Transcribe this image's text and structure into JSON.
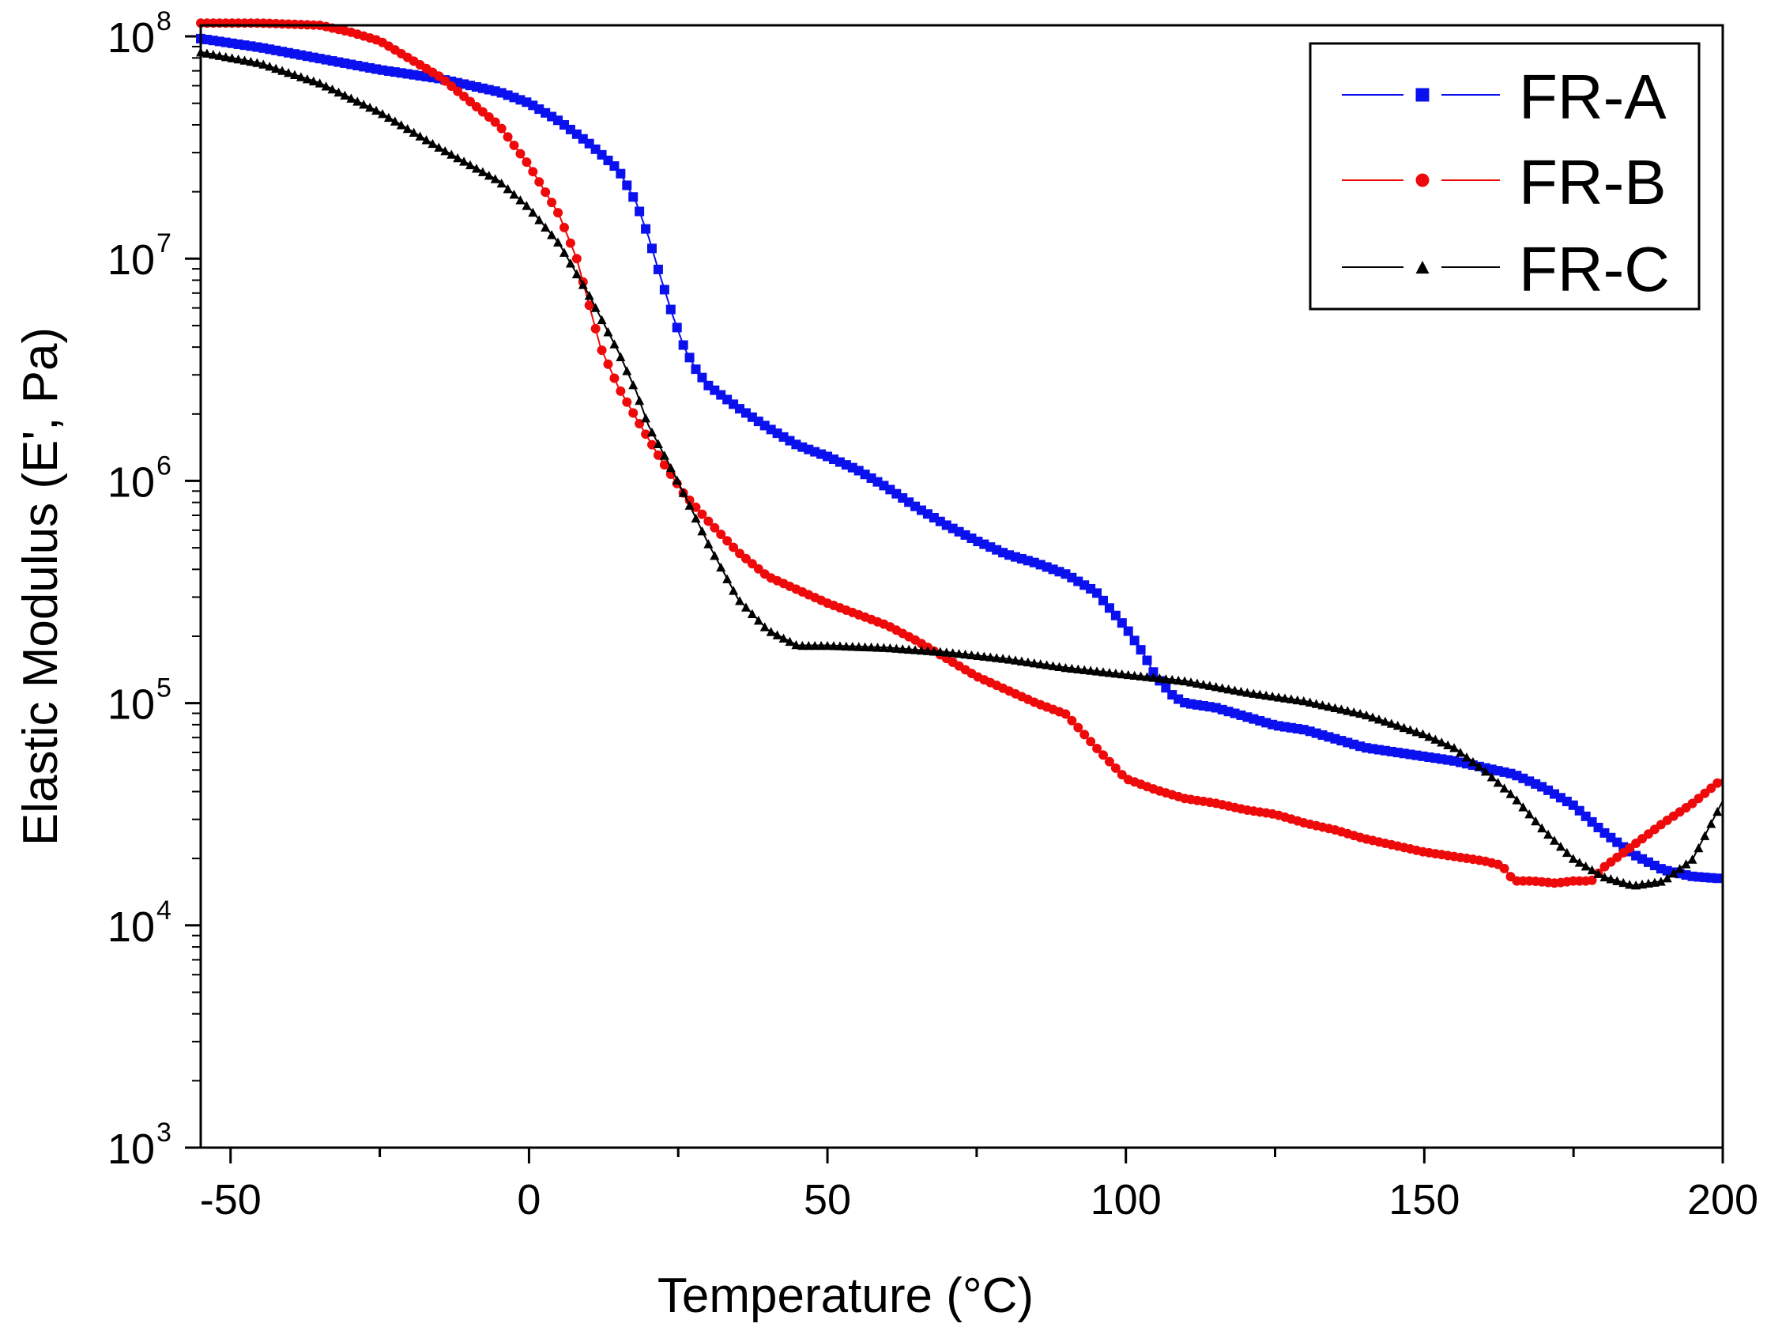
{
  "chart_data": {
    "type": "scatter",
    "title": "",
    "xlabel": "Temperature (°C)",
    "ylabel": "Elastic Modulus (E', Pa)",
    "xlim": [
      -55,
      200
    ],
    "ylim_log10": [
      3,
      8.05
    ],
    "y_scale": "log",
    "x_ticks": [
      -50,
      0,
      50,
      100,
      150,
      200
    ],
    "x_tick_labels": [
      "-50",
      "0",
      "50",
      "100",
      "150",
      "200"
    ],
    "y_ticks_exp": [
      3,
      4,
      5,
      6,
      7,
      8
    ],
    "y_tick_base": "10",
    "y_tick_exps": [
      "3",
      "4",
      "5",
      "6",
      "7",
      "8"
    ],
    "legend_position": "top-right",
    "series": [
      {
        "name": "FR-A",
        "color": "#0a10ee",
        "marker": "square",
        "points": [
          [
            -55,
            7.99
          ],
          [
            -45,
            7.95
          ],
          [
            -35,
            7.9
          ],
          [
            -25,
            7.85
          ],
          [
            -15,
            7.81
          ],
          [
            -5,
            7.75
          ],
          [
            0,
            7.7
          ],
          [
            5,
            7.62
          ],
          [
            10,
            7.52
          ],
          [
            15,
            7.4
          ],
          [
            18,
            7.25
          ],
          [
            20,
            7.1
          ],
          [
            22,
            6.92
          ],
          [
            24,
            6.75
          ],
          [
            26,
            6.6
          ],
          [
            28,
            6.5
          ],
          [
            30,
            6.43
          ],
          [
            35,
            6.33
          ],
          [
            40,
            6.24
          ],
          [
            45,
            6.16
          ],
          [
            50,
            6.11
          ],
          [
            55,
            6.05
          ],
          [
            60,
            5.97
          ],
          [
            65,
            5.88
          ],
          [
            70,
            5.8
          ],
          [
            75,
            5.73
          ],
          [
            80,
            5.67
          ],
          [
            85,
            5.63
          ],
          [
            90,
            5.58
          ],
          [
            95,
            5.5
          ],
          [
            100,
            5.34
          ],
          [
            103,
            5.22
          ],
          [
            105,
            5.12
          ],
          [
            108,
            5.03
          ],
          [
            110,
            5.0
          ],
          [
            115,
            4.98
          ],
          [
            120,
            4.94
          ],
          [
            125,
            4.9
          ],
          [
            130,
            4.88
          ],
          [
            135,
            4.84
          ],
          [
            140,
            4.8
          ],
          [
            145,
            4.78
          ],
          [
            150,
            4.76
          ],
          [
            155,
            4.74
          ],
          [
            160,
            4.71
          ],
          [
            165,
            4.68
          ],
          [
            170,
            4.62
          ],
          [
            175,
            4.54
          ],
          [
            180,
            4.42
          ],
          [
            185,
            4.32
          ],
          [
            190,
            4.25
          ],
          [
            195,
            4.22
          ],
          [
            200,
            4.21
          ]
        ]
      },
      {
        "name": "FR-B",
        "color": "#ee0a0a",
        "marker": "circle",
        "points": [
          [
            -55,
            8.06
          ],
          [
            -45,
            8.06
          ],
          [
            -35,
            8.05
          ],
          [
            -30,
            8.02
          ],
          [
            -25,
            7.98
          ],
          [
            -20,
            7.9
          ],
          [
            -15,
            7.82
          ],
          [
            -10,
            7.71
          ],
          [
            -5,
            7.6
          ],
          [
            0,
            7.42
          ],
          [
            5,
            7.2
          ],
          [
            8,
            7.0
          ],
          [
            10,
            6.8
          ],
          [
            12,
            6.6
          ],
          [
            15,
            6.42
          ],
          [
            18,
            6.28
          ],
          [
            22,
            6.1
          ],
          [
            26,
            5.94
          ],
          [
            30,
            5.82
          ],
          [
            35,
            5.68
          ],
          [
            40,
            5.57
          ],
          [
            45,
            5.51
          ],
          [
            50,
            5.45
          ],
          [
            55,
            5.4
          ],
          [
            60,
            5.35
          ],
          [
            65,
            5.28
          ],
          [
            70,
            5.2
          ],
          [
            75,
            5.12
          ],
          [
            80,
            5.06
          ],
          [
            85,
            5.0
          ],
          [
            90,
            4.95
          ],
          [
            95,
            4.8
          ],
          [
            100,
            4.66
          ],
          [
            105,
            4.61
          ],
          [
            110,
            4.57
          ],
          [
            115,
            4.55
          ],
          [
            120,
            4.52
          ],
          [
            125,
            4.5
          ],
          [
            130,
            4.46
          ],
          [
            135,
            4.43
          ],
          [
            140,
            4.39
          ],
          [
            145,
            4.36
          ],
          [
            150,
            4.33
          ],
          [
            155,
            4.31
          ],
          [
            160,
            4.29
          ],
          [
            163,
            4.27
          ],
          [
            165,
            4.2
          ],
          [
            168,
            4.2
          ],
          [
            172,
            4.19
          ],
          [
            175,
            4.2
          ],
          [
            178,
            4.2
          ],
          [
            180,
            4.26
          ],
          [
            185,
            4.36
          ],
          [
            190,
            4.46
          ],
          [
            195,
            4.55
          ],
          [
            200,
            4.66
          ]
        ]
      },
      {
        "name": "FR-C",
        "color": "#000000",
        "marker": "triangle",
        "points": [
          [
            -55,
            7.93
          ],
          [
            -45,
            7.88
          ],
          [
            -35,
            7.79
          ],
          [
            -25,
            7.66
          ],
          [
            -15,
            7.5
          ],
          [
            -5,
            7.35
          ],
          [
            0,
            7.23
          ],
          [
            5,
            7.07
          ],
          [
            10,
            6.84
          ],
          [
            15,
            6.58
          ],
          [
            18,
            6.4
          ],
          [
            20,
            6.25
          ],
          [
            23,
            6.1
          ],
          [
            26,
            5.94
          ],
          [
            30,
            5.72
          ],
          [
            35,
            5.47
          ],
          [
            40,
            5.33
          ],
          [
            45,
            5.26
          ],
          [
            50,
            5.26
          ],
          [
            60,
            5.25
          ],
          [
            70,
            5.23
          ],
          [
            80,
            5.2
          ],
          [
            90,
            5.16
          ],
          [
            100,
            5.13
          ],
          [
            110,
            5.1
          ],
          [
            120,
            5.05
          ],
          [
            130,
            5.01
          ],
          [
            140,
            4.95
          ],
          [
            150,
            4.86
          ],
          [
            155,
            4.8
          ],
          [
            160,
            4.7
          ],
          [
            165,
            4.58
          ],
          [
            170,
            4.43
          ],
          [
            175,
            4.3
          ],
          [
            180,
            4.22
          ],
          [
            185,
            4.18
          ],
          [
            190,
            4.2
          ],
          [
            195,
            4.3
          ],
          [
            200,
            4.56
          ]
        ]
      }
    ]
  }
}
